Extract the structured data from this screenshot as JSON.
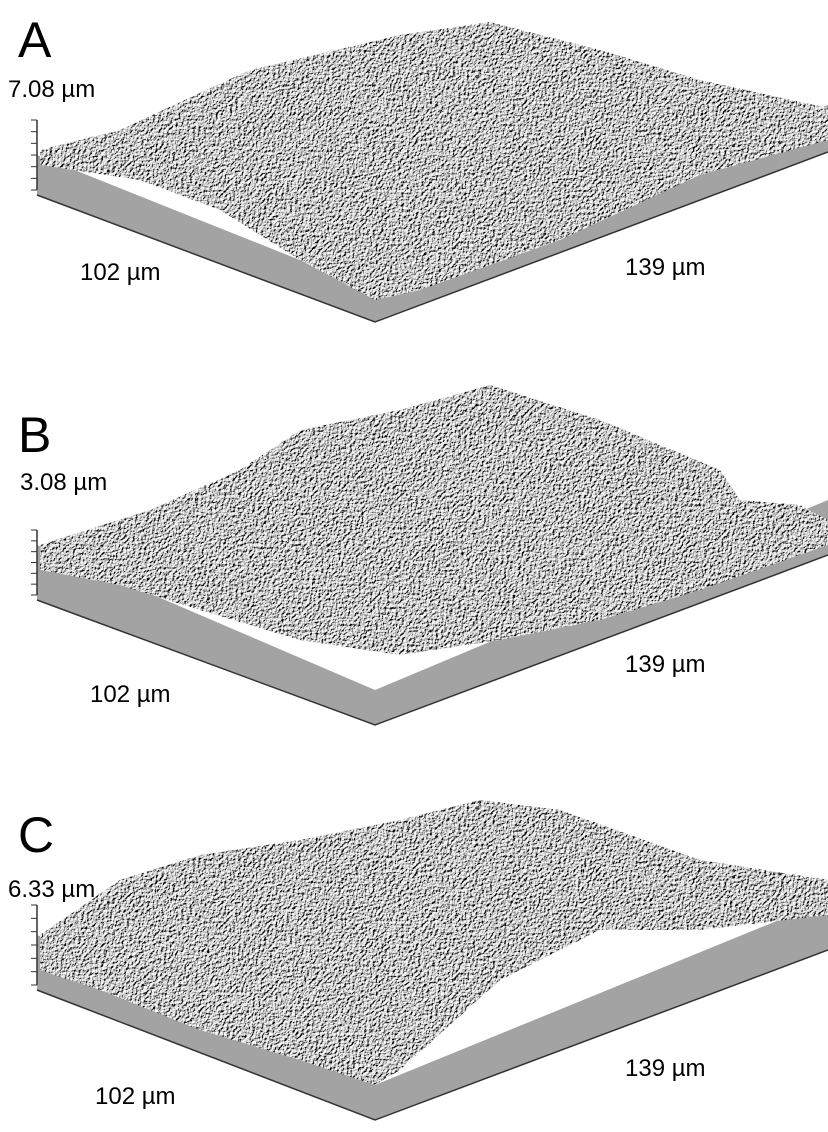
{
  "panels": [
    {
      "label": "A",
      "height": "7.08 µm",
      "x_length": "102 µm",
      "y_length": "139 µm"
    },
    {
      "label": "B",
      "height": "3.08 µm",
      "x_length": "102 µm",
      "y_length": "139 µm"
    },
    {
      "label": "C",
      "height": "6.33 µm",
      "x_length": "102 µm",
      "y_length": "139 µm"
    }
  ]
}
